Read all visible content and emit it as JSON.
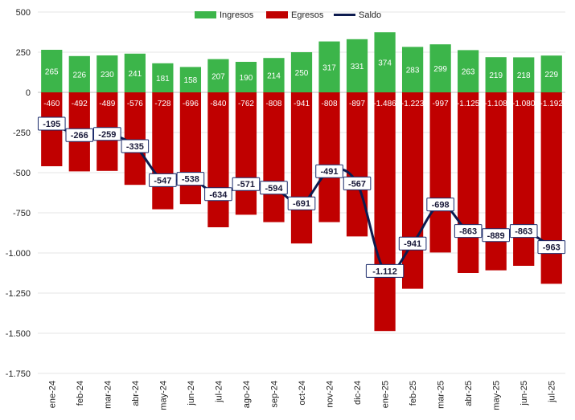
{
  "chart_data": {
    "type": "bar",
    "categories": [
      "ene-24",
      "feb-24",
      "mar-24",
      "abr-24",
      "may-24",
      "jun-24",
      "jul-24",
      "ago-24",
      "sep-24",
      "oct-24",
      "nov-24",
      "dic-24",
      "ene-25",
      "feb-25",
      "mar-25",
      "abr-25",
      "may-25",
      "jun-25",
      "jul-25"
    ],
    "series": [
      {
        "name": "Ingresos",
        "kind": "bar",
        "color": "#3cb54a",
        "values": [
          265,
          226,
          230,
          241,
          181,
          158,
          207,
          190,
          214,
          250,
          317,
          331,
          374,
          283,
          299,
          263,
          219,
          218,
          229
        ],
        "labels": [
          "265",
          "226",
          "230",
          "241",
          "181",
          "158",
          "207",
          "190",
          "214",
          "250",
          "317",
          "331",
          "374",
          "283",
          "299",
          "263",
          "219",
          "218",
          "229"
        ]
      },
      {
        "name": "Egresos",
        "kind": "bar",
        "color": "#c00000",
        "values": [
          -460,
          -492,
          -489,
          -576,
          -728,
          -696,
          -840,
          -762,
          -808,
          -941,
          -808,
          -897,
          -1486,
          -1223,
          -997,
          -1125,
          -1108,
          -1080,
          -1192
        ],
        "labels": [
          "-460",
          "-492",
          "-489",
          "-576",
          "-728",
          "-696",
          "-840",
          "-762",
          "-808",
          "-941",
          "-808",
          "-897",
          "-1.486",
          "-1.223",
          "-997",
          "-1.125",
          "-1.108",
          "-1.080",
          "-1.192"
        ]
      },
      {
        "name": "Saldo",
        "kind": "line",
        "color": "#0d1b4f",
        "values": [
          -195,
          -266,
          -259,
          -335,
          -547,
          -538,
          -634,
          -571,
          -594,
          -691,
          -491,
          -567,
          -1112,
          -941,
          -698,
          -863,
          -889,
          -863,
          -963
        ],
        "labels": [
          "-195",
          "-266",
          "-259",
          "-335",
          "-547",
          "-538",
          "-634",
          "-571",
          "-594",
          "-691",
          "-491",
          "-567",
          "-1.112",
          "-941",
          "-698",
          "-863",
          "-889",
          "-863",
          "-963"
        ]
      }
    ],
    "y_ticks": [
      500,
      250,
      0,
      -250,
      -500,
      -750,
      -1000,
      -1250,
      -1500,
      -1750
    ],
    "y_tick_labels": [
      "500",
      "250",
      "0",
      "-250",
      "-500",
      "-750",
      "-1.000",
      "-1.250",
      "-1.500",
      "-1.750"
    ],
    "ylim": [
      -1750,
      500
    ],
    "legend_position": "top-center",
    "grid": true
  }
}
